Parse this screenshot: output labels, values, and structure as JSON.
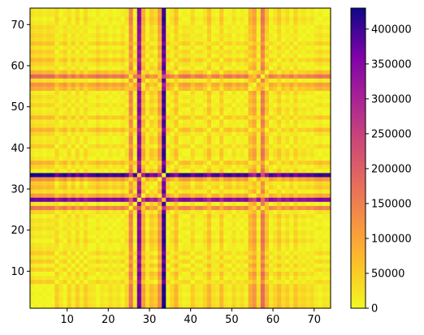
{
  "chart_data": {
    "type": "heatmap",
    "title": "",
    "xlabel": "",
    "ylabel": "",
    "xlim": [
      1,
      74
    ],
    "ylim": [
      1,
      74
    ],
    "x_ticks": [
      10,
      20,
      30,
      40,
      50,
      60,
      70
    ],
    "y_ticks": [
      10,
      20,
      30,
      40,
      50,
      60,
      70
    ],
    "colorscale": "plasma_r",
    "colorbar": {
      "min": 0,
      "max": 430000,
      "ticks": [
        0,
        50000,
        100000,
        150000,
        200000,
        250000,
        300000,
        350000,
        400000
      ],
      "tick_labels": [
        "0",
        "50000",
        "100000",
        "150000",
        "200000",
        "250000",
        "300000",
        "350000",
        "400000"
      ]
    },
    "n_cells": 73,
    "value_model": "symmetric pairwise distance: cell(i,j) approx |w_i - w_j|, each index weight w_k estimated from the stripes",
    "index_weights": [
      0,
      10000,
      5000,
      15000,
      5000,
      10000,
      60000,
      30000,
      10000,
      55000,
      20000,
      60000,
      25000,
      60000,
      35000,
      30000,
      10000,
      30000,
      20000,
      40000,
      25000,
      35000,
      15000,
      50000,
      170000,
      30000,
      380000,
      120000,
      40000,
      80000,
      60000,
      140000,
      430000,
      20000,
      50000,
      90000,
      30000,
      15000,
      20000,
      60000,
      30000,
      25000,
      50000,
      90000,
      40000,
      30000,
      80000,
      30000,
      20000,
      50000,
      25000,
      40000,
      20000,
      100000,
      130000,
      40000,
      190000,
      90000,
      30000,
      50000,
      80000,
      40000,
      60000,
      30000,
      70000,
      40000,
      50000,
      35000,
      45000,
      25000,
      15000,
      30000,
      25000
    ]
  }
}
